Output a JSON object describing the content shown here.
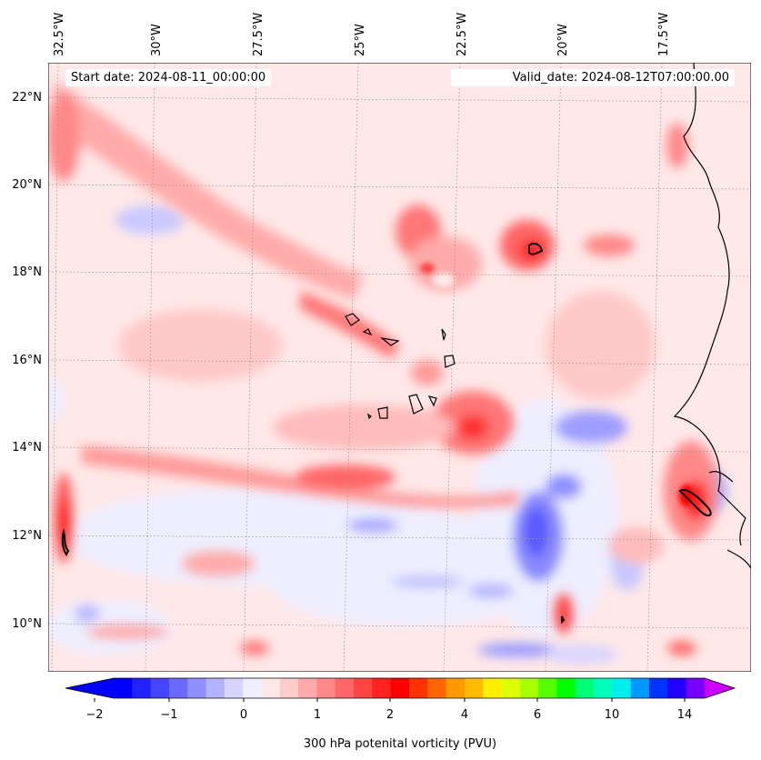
{
  "map": {
    "start_date_label": "Start date: 2024-08-11_00:00:00",
    "valid_date_label": "Valid_date: 2024-08-12T07:00:00.00",
    "lon_labels": [
      "32.5°W",
      "30°W",
      "27.5°W",
      "25°W",
      "22.5°W",
      "20°W",
      "17.5°W"
    ],
    "lat_labels": [
      "22°N",
      "20°N",
      "18°N",
      "16°N",
      "14°N",
      "12°N",
      "10°N"
    ],
    "lon_extent": [
      -32.7,
      -15.3
    ],
    "lat_extent": [
      8.9,
      22.8
    ]
  },
  "colorbar": {
    "label": "300 hPa potenital vorticity (PVU)",
    "tick_labels": [
      "−2",
      "−1",
      "0",
      "1",
      "2",
      "4",
      "6",
      "10",
      "14"
    ],
    "colors": [
      "#0000ff",
      "#2222ff",
      "#4545ff",
      "#6a6aff",
      "#8f8fff",
      "#b3b3ff",
      "#d5d5ff",
      "#eeeeff",
      "#ffe8e8",
      "#ffcccc",
      "#ffaaaa",
      "#ff8888",
      "#ff6666",
      "#ff4444",
      "#ff2222",
      "#ff0000",
      "#ff3300",
      "#ff6600",
      "#ff9900",
      "#ffbb00",
      "#ffee00",
      "#ddff00",
      "#aaff00",
      "#55ff00",
      "#00ff00",
      "#00ff77",
      "#00ffbb",
      "#00eeee",
      "#0099ff",
      "#0033ff",
      "#2200ff",
      "#7700ff"
    ],
    "extend_low_color": "#0000ff",
    "extend_high_color": "#cc00ff"
  }
}
